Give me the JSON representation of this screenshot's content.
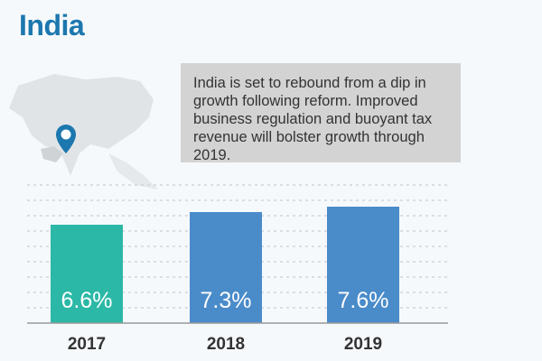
{
  "title": "India",
  "note": "India is set to rebound from a dip in growth following reform. Improved business regulation and buoyant tax revenue will bolster growth through 2019.",
  "icons": {
    "map": "asia-map-icon",
    "pin": "location-pin-icon"
  },
  "colors": {
    "title": "#1c77ae",
    "bar_2017": "#2bb8a6",
    "bar_forecast": "#4a8bc9",
    "pin": "#1c77ae"
  },
  "chart_data": {
    "type": "bar",
    "title": "",
    "xlabel": "",
    "ylabel": "",
    "categories": [
      "2017",
      "2018",
      "2019"
    ],
    "values": [
      6.6,
      7.3,
      7.6
    ],
    "labels": [
      "6.6%",
      "7.3%",
      "7.6%"
    ],
    "grid": true,
    "legend": "none"
  }
}
